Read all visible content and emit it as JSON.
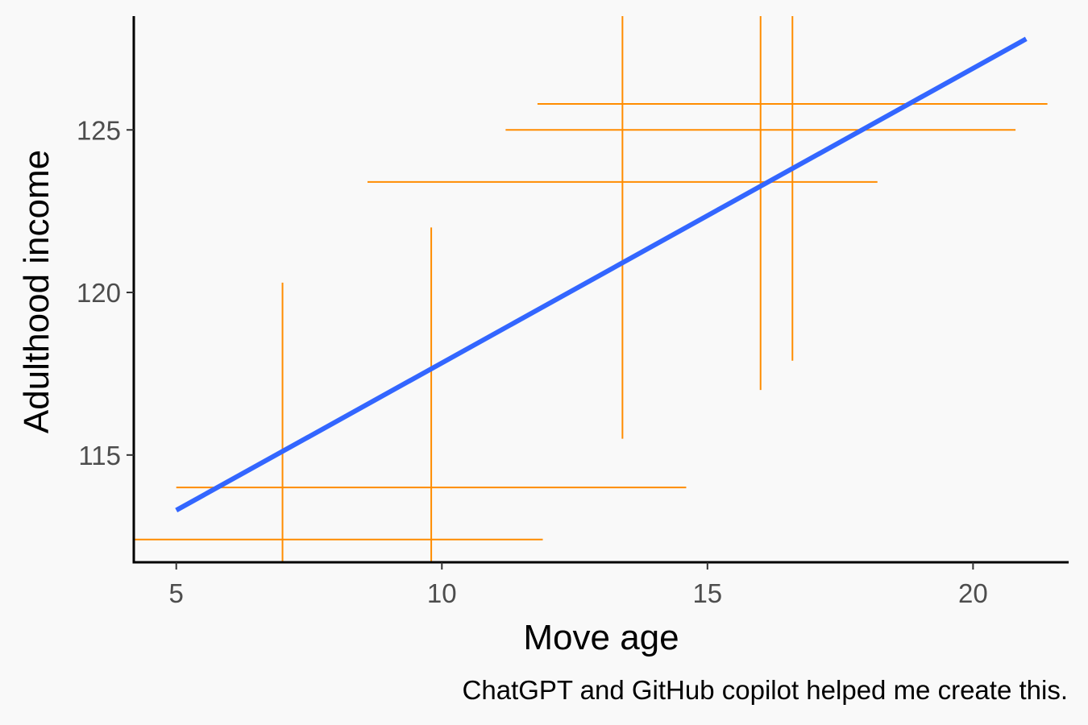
{
  "chart_data": {
    "type": "scatter",
    "xlabel": "Move age",
    "ylabel": "Adulthood income",
    "caption": "ChatGPT and GitHub copilot helped me create this.",
    "xlim": [
      4.2,
      21.8
    ],
    "ylim": [
      111.7,
      128.5
    ],
    "x_ticks": [
      5,
      10,
      15,
      20
    ],
    "y_ticks": [
      115,
      120,
      125
    ],
    "grid": false,
    "colors": {
      "crosshair": "#FF8C00",
      "fit": "#3366FF",
      "axis": "#000000",
      "background": "#F9F9F9"
    },
    "crosshairs": [
      {
        "x": 7.0,
        "y": 112.4,
        "xmin": 4.2,
        "xmax": 11.9,
        "ymin": 111.7,
        "ymax": 120.3
      },
      {
        "x": 9.8,
        "y": 114.0,
        "xmin": 5.0,
        "xmax": 14.6,
        "ymin": 111.7,
        "ymax": 122.0
      },
      {
        "x": 13.4,
        "y": 123.4,
        "xmin": 8.6,
        "xmax": 18.2,
        "ymin": 115.5,
        "ymax": 128.5
      },
      {
        "x": 16.0,
        "y": 125.0,
        "xmin": 11.2,
        "xmax": 20.8,
        "ymin": 117.0,
        "ymax": 128.5
      },
      {
        "x": 16.6,
        "y": 125.8,
        "xmin": 11.8,
        "xmax": 21.4,
        "ymin": 117.9,
        "ymax": 128.5
      }
    ],
    "fit_line": {
      "x": [
        5,
        21
      ],
      "y": [
        113.3,
        127.8
      ]
    }
  }
}
